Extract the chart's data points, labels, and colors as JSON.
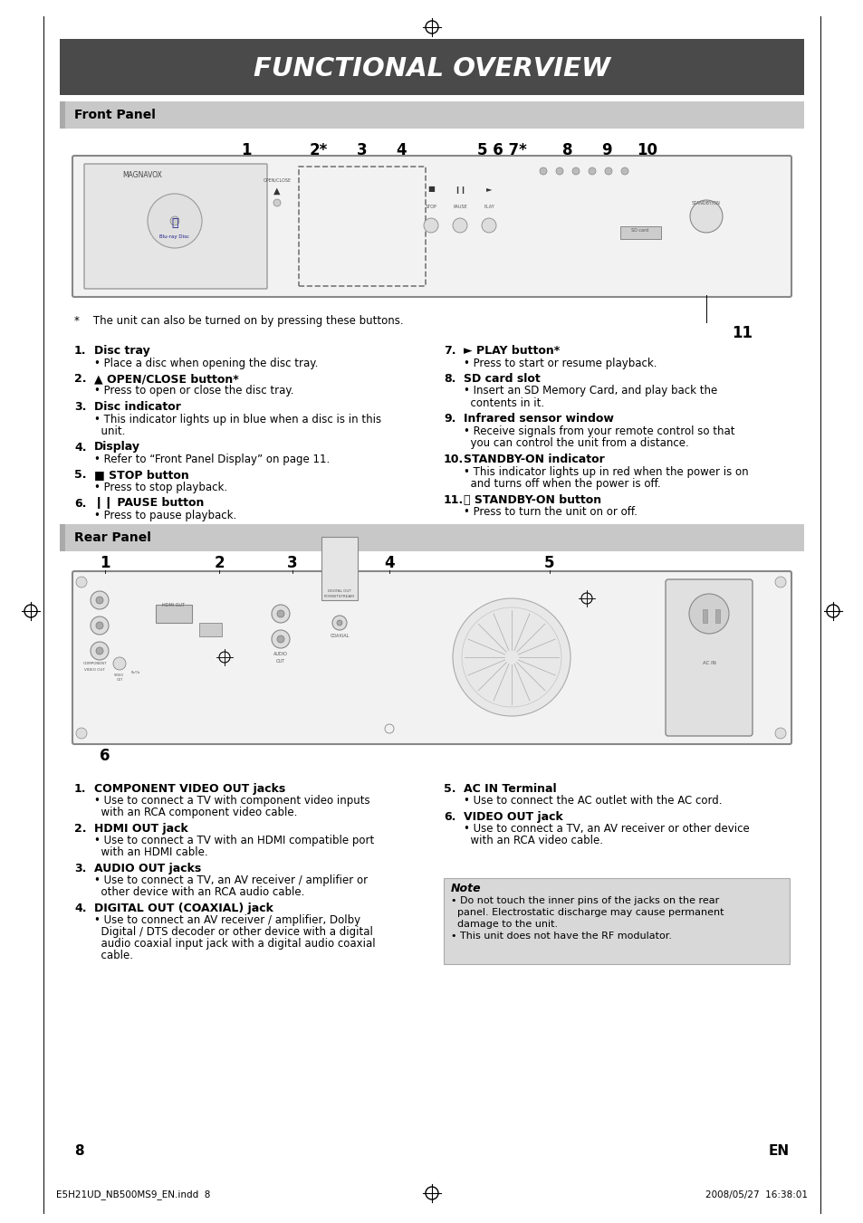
{
  "bg_color": "#ffffff",
  "title_bg_color": "#555555",
  "title_text": "FUNCTIONAL OVERVIEW",
  "title_text_color": "#ffffff",
  "front_panel_title": "Front Panel",
  "rear_panel_title": "Rear Panel",
  "note_bg_color": "#d8d8d8",
  "footnote_asterisk": "*    The unit can also be turned on by pressing these buttons.",
  "page_number": "8",
  "page_right": "EN",
  "footer_left": "E5H21UD_NB500MS9_EN.indd  8",
  "footer_right": "2008/05/27  16:38:01",
  "front_items_left": [
    {
      "num": "1.",
      "title": "Disc tray",
      "lines": [
        "• Place a disc when opening the disc tray."
      ]
    },
    {
      "num": "2.",
      "title": "▲ OPEN/CLOSE button*",
      "lines": [
        "• Press to open or close the disc tray."
      ]
    },
    {
      "num": "3.",
      "title": "Disc indicator",
      "lines": [
        "• This indicator lights up in blue when a disc is in this",
        "  unit."
      ]
    },
    {
      "num": "4.",
      "title": "Display",
      "lines": [
        "• Refer to “Front Panel Display” on page 11."
      ]
    },
    {
      "num": "5.",
      "title": "■ STOP button",
      "lines": [
        "• Press to stop playback."
      ]
    },
    {
      "num": "6.",
      "title": "❙❙ PAUSE button",
      "lines": [
        "• Press to pause playback."
      ]
    }
  ],
  "front_items_right": [
    {
      "num": "7.",
      "title": "► PLAY button*",
      "lines": [
        "• Press to start or resume playback."
      ]
    },
    {
      "num": "8.",
      "title": "SD card slot",
      "lines": [
        "• Insert an SD Memory Card, and play back the",
        "  contents in it."
      ]
    },
    {
      "num": "9.",
      "title": "Infrared sensor window",
      "lines": [
        "• Receive signals from your remote control so that",
        "  you can control the unit from a distance."
      ]
    },
    {
      "num": "10.",
      "title": "STANDBY-ON indicator",
      "lines": [
        "• This indicator lights up in red when the power is on",
        "  and turns off when the power is off."
      ]
    },
    {
      "num": "11.",
      "title": "ⓞ STANDBY-ON button",
      "lines": [
        "• Press to turn the unit on or off."
      ]
    }
  ],
  "rear_items_left": [
    {
      "num": "1.",
      "title": "COMPONENT VIDEO OUT jacks",
      "lines": [
        "• Use to connect a TV with component video inputs",
        "  with an RCA component video cable."
      ]
    },
    {
      "num": "2.",
      "title": "HDMI OUT jack",
      "lines": [
        "• Use to connect a TV with an HDMI compatible port",
        "  with an HDMI cable."
      ]
    },
    {
      "num": "3.",
      "title": "AUDIO OUT jacks",
      "lines": [
        "• Use to connect a TV, an AV receiver / amplifier or",
        "  other device with an RCA audio cable."
      ]
    },
    {
      "num": "4.",
      "title": "DIGITAL OUT (COAXIAL) jack",
      "lines": [
        "• Use to connect an AV receiver / amplifier, Dolby",
        "  Digital / DTS decoder or other device with a digital",
        "  audio coaxial input jack with a digital audio coaxial",
        "  cable."
      ]
    }
  ],
  "rear_items_right": [
    {
      "num": "5.",
      "title": "AC IN Terminal",
      "lines": [
        "• Use to connect the AC outlet with the AC cord."
      ]
    },
    {
      "num": "6.",
      "title": "VIDEO OUT jack",
      "lines": [
        "• Use to connect a TV, an AV receiver or other device",
        "  with an RCA video cable."
      ]
    }
  ],
  "note_title": "Note",
  "note_lines": [
    "• Do not touch the inner pins of the jacks on the rear",
    "  panel. Electrostatic discharge may cause permanent",
    "  damage to the unit.",
    "• This unit does not have the RF modulator."
  ]
}
